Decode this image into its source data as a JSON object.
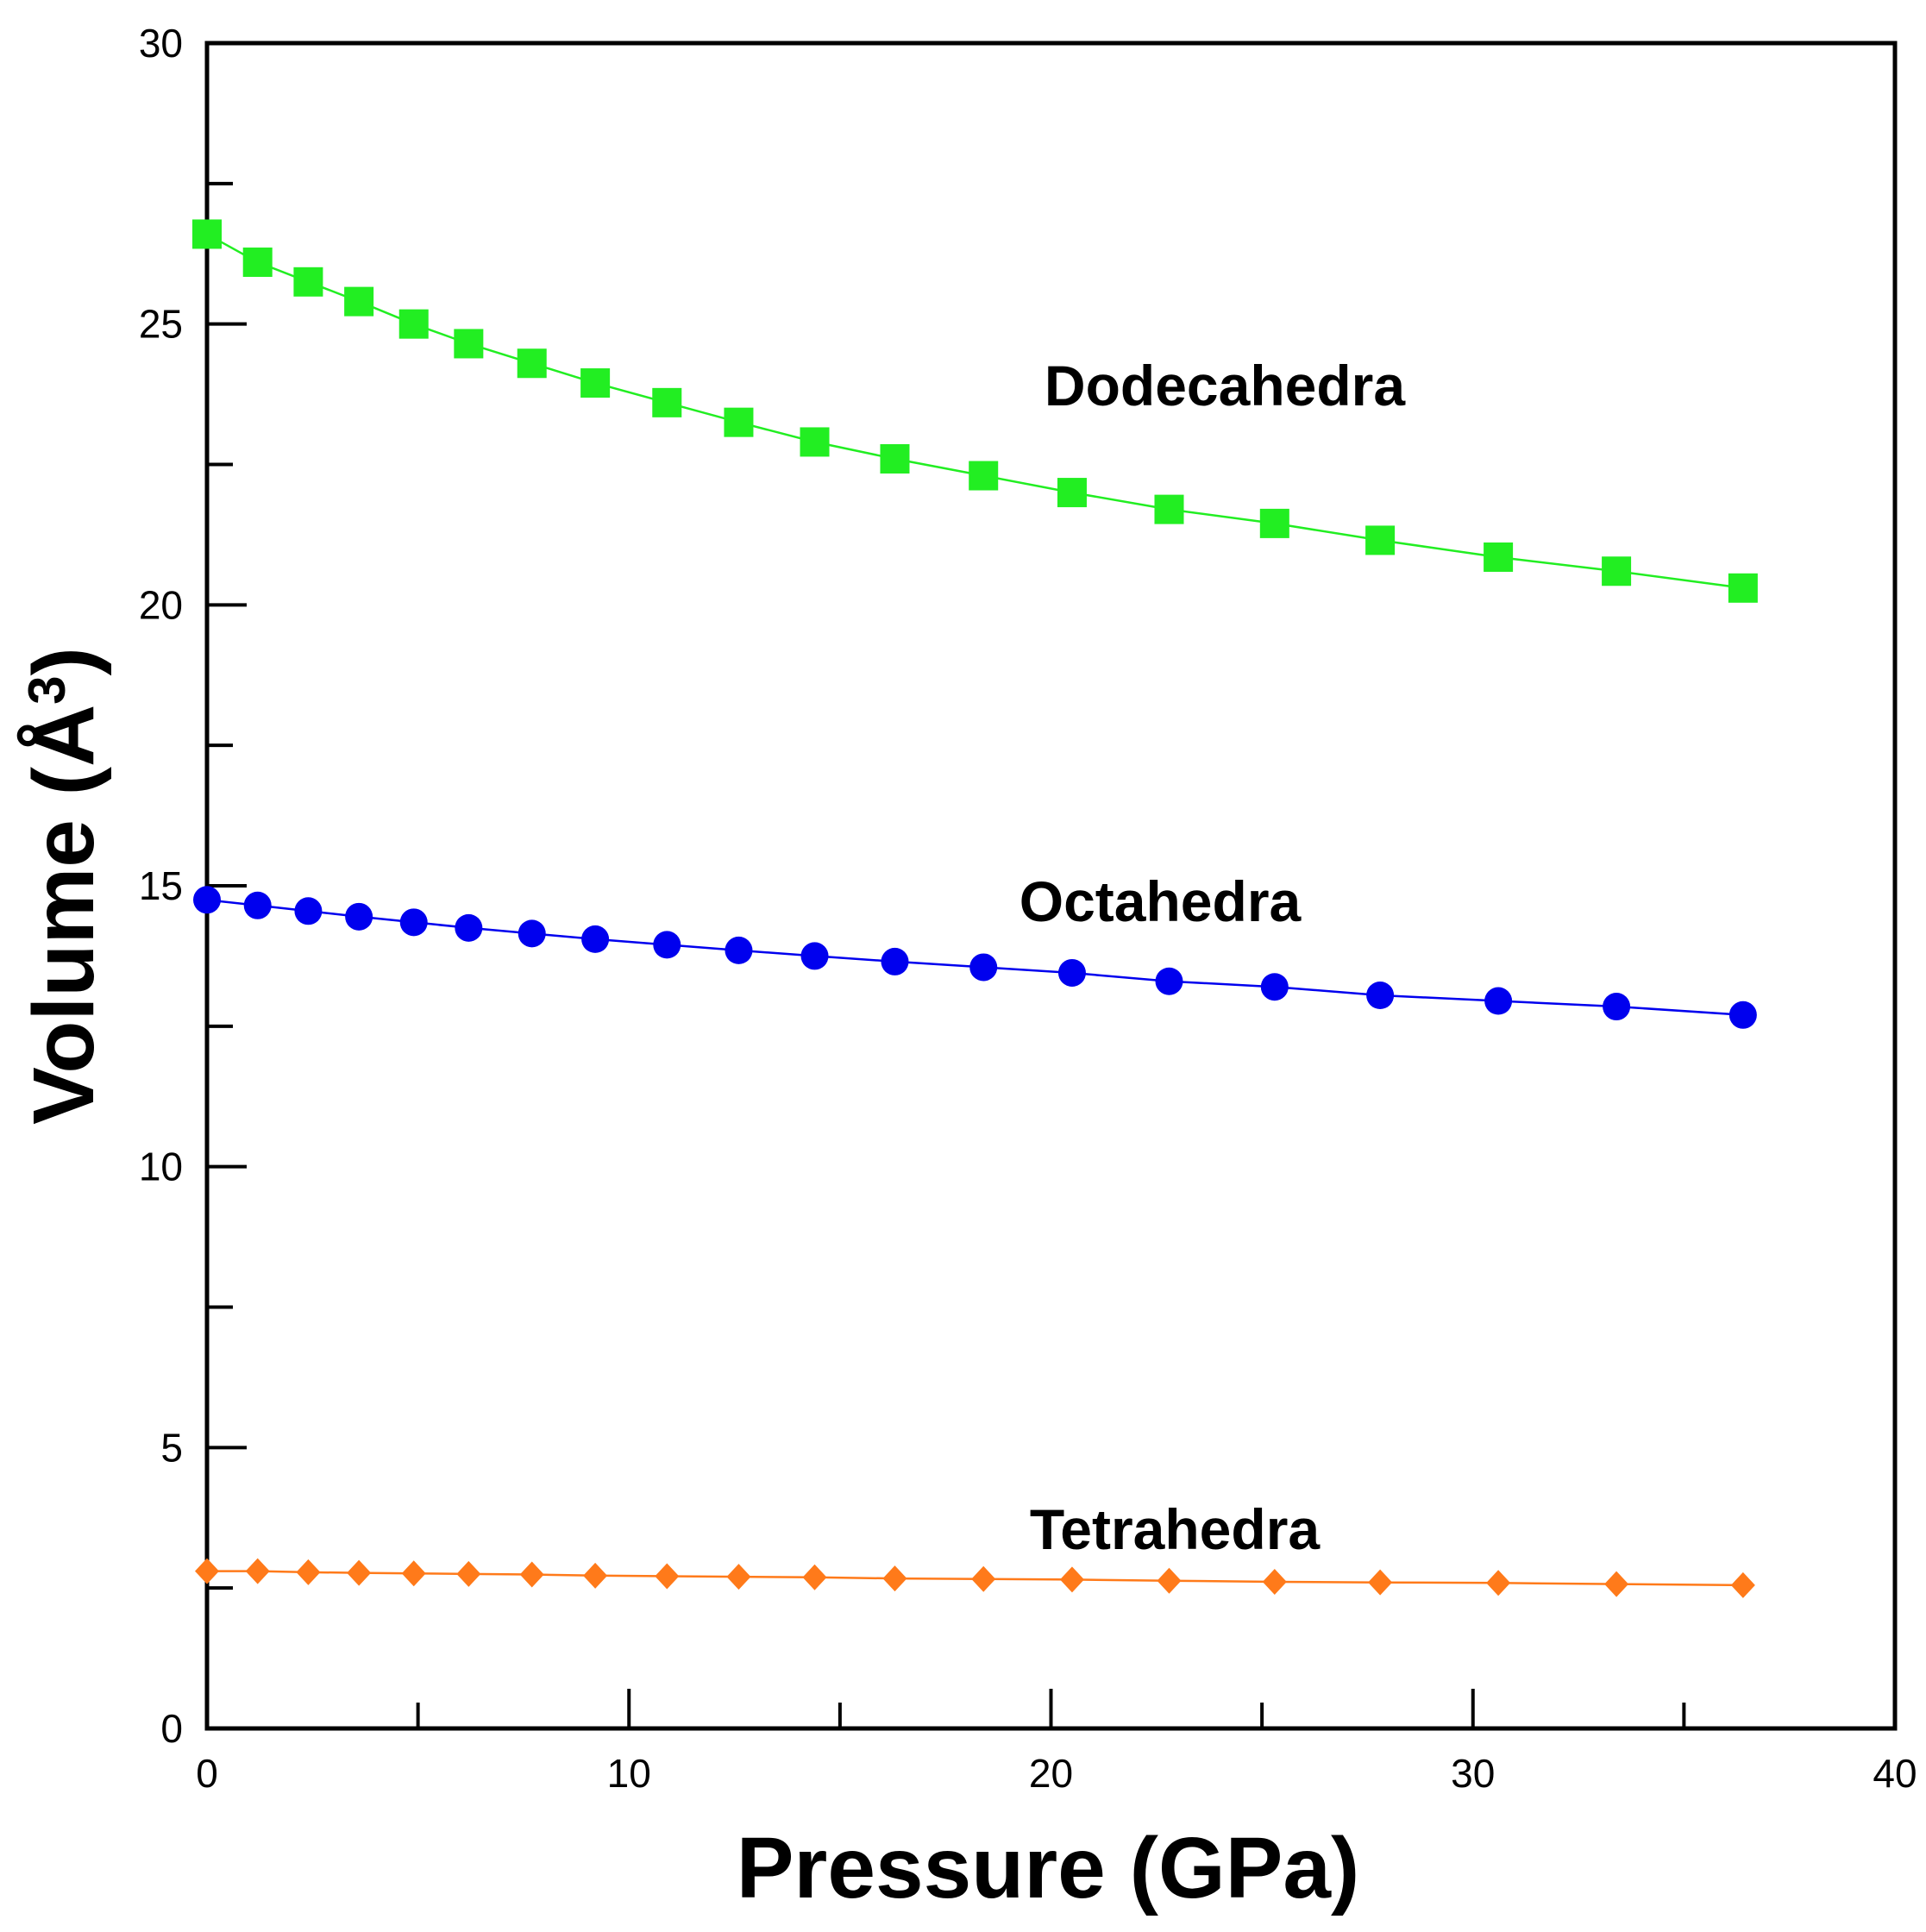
{
  "chart_data": {
    "type": "scatter",
    "title": "",
    "xlabel": "Pressure (GPa)",
    "ylabel_main": "Volume (Å",
    "ylabel_sup": "3",
    "ylabel_close": ")",
    "xlim": [
      0,
      40
    ],
    "ylim": [
      0,
      30
    ],
    "xticks": [
      0,
      10,
      20,
      30,
      40
    ],
    "xtick_labels": [
      "0",
      "10",
      "20",
      "30",
      "40"
    ],
    "yticks": [
      0,
      5,
      10,
      15,
      20,
      25,
      30
    ],
    "ytick_labels": [
      "0",
      "5",
      "10",
      "15",
      "20",
      "25",
      "30"
    ],
    "grid": false,
    "x": [
      0,
      1.2,
      2.4,
      3.6,
      4.9,
      6.2,
      7.7,
      9.2,
      10.9,
      12.6,
      14.4,
      16.3,
      18.4,
      20.5,
      22.8,
      25.3,
      27.8,
      30.6,
      33.4,
      36.4
    ],
    "series": [
      {
        "name": "Dodecahedra",
        "label": "Dodecahedra",
        "color": "#22ee22",
        "marker": "square",
        "values": [
          26.6,
          26.1,
          25.75,
          25.4,
          25.0,
          24.65,
          24.3,
          23.95,
          23.6,
          23.25,
          22.9,
          22.6,
          22.3,
          22.0,
          21.7,
          21.45,
          21.15,
          20.85,
          20.6,
          20.3
        ]
      },
      {
        "name": "Octahedra",
        "label": "Octahedra",
        "color": "#0000ee",
        "marker": "circle",
        "values": [
          14.75,
          14.65,
          14.55,
          14.45,
          14.35,
          14.25,
          14.15,
          14.05,
          13.95,
          13.85,
          13.75,
          13.65,
          13.55,
          13.45,
          13.3,
          13.2,
          13.05,
          12.95,
          12.85,
          12.7
        ]
      },
      {
        "name": "Tetrahedra",
        "label": "Tetrahedra",
        "color": "#ff7a1a",
        "marker": "diamond",
        "values": [
          2.8,
          2.8,
          2.78,
          2.77,
          2.76,
          2.75,
          2.74,
          2.72,
          2.71,
          2.7,
          2.69,
          2.67,
          2.66,
          2.65,
          2.63,
          2.61,
          2.6,
          2.59,
          2.57,
          2.55
        ]
      }
    ]
  }
}
